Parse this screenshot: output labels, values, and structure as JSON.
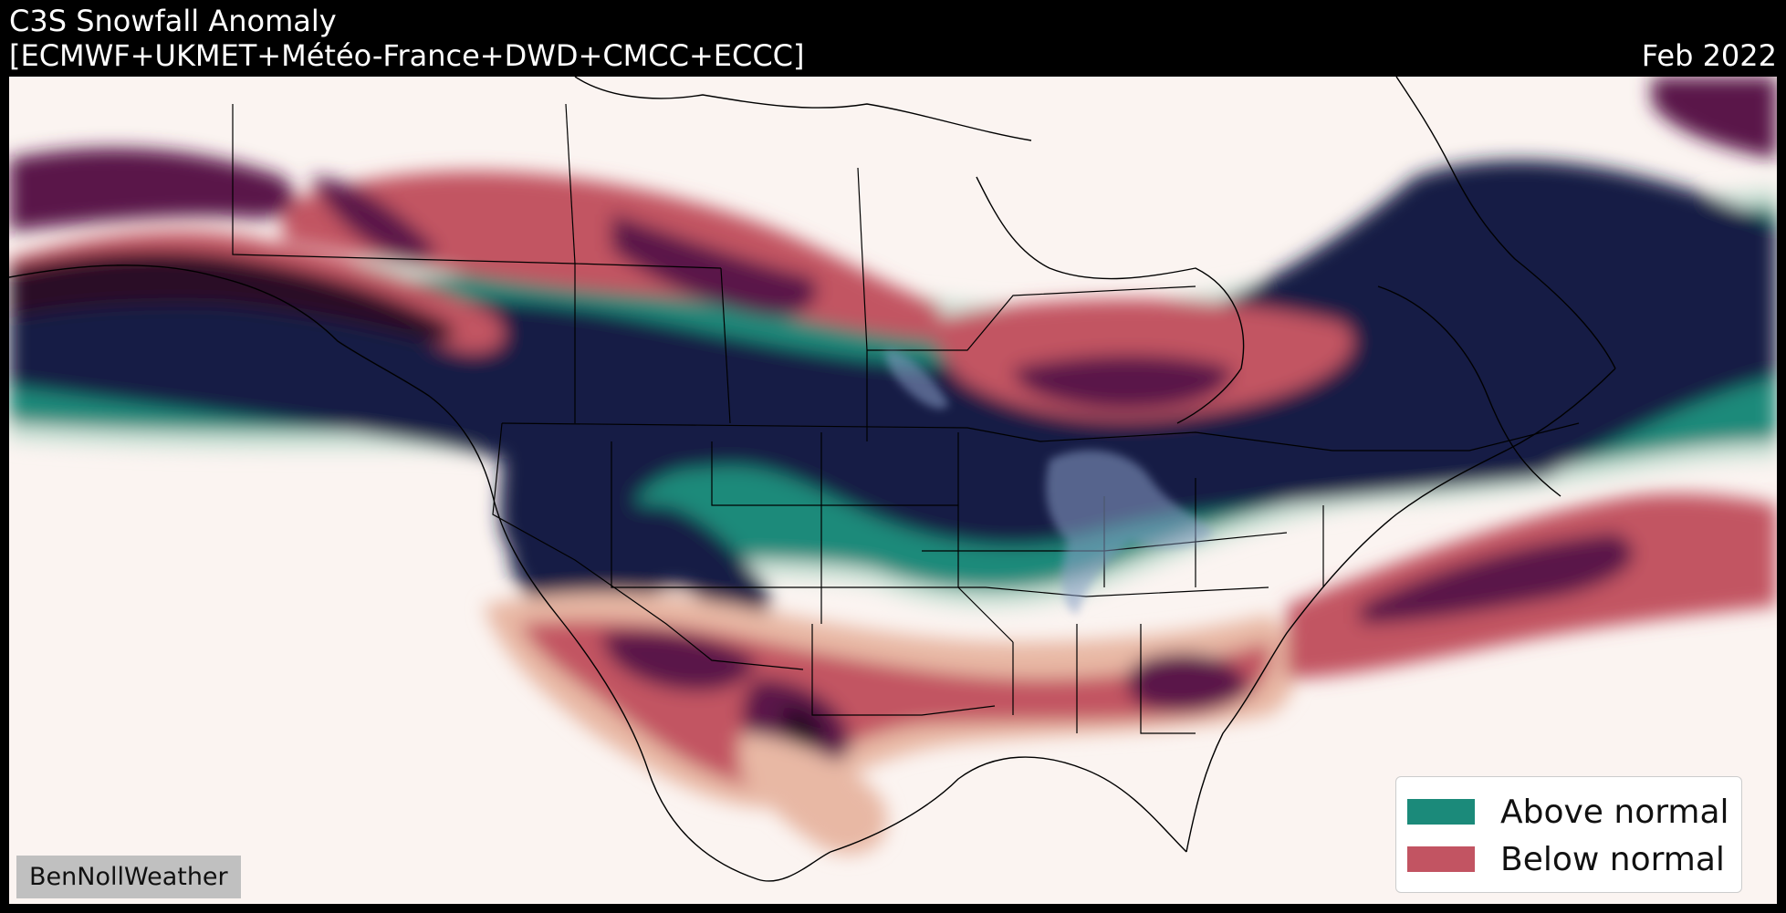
{
  "header": {
    "title": "C3S Snowfall Anomaly",
    "models": "[ECMWF+UKMET+Météo-France+DWD+CMCC+ECCC]",
    "period": "Feb 2022"
  },
  "legend": {
    "items": [
      {
        "label": "Above normal",
        "color": "#1b8a7a"
      },
      {
        "label": "Below normal",
        "color": "#c25462"
      }
    ]
  },
  "watermark": "BenNollWeather",
  "colors": {
    "background": "#000000",
    "neutral": "#fbf4f1",
    "deep_above": "#151d45",
    "above": "#1b8a7a",
    "light_above": "#cfe3d8",
    "light_below": "#e8b8a4",
    "below": "#c25462",
    "deep_below": "#5a1848",
    "darkest_below": "#2b0a28"
  }
}
